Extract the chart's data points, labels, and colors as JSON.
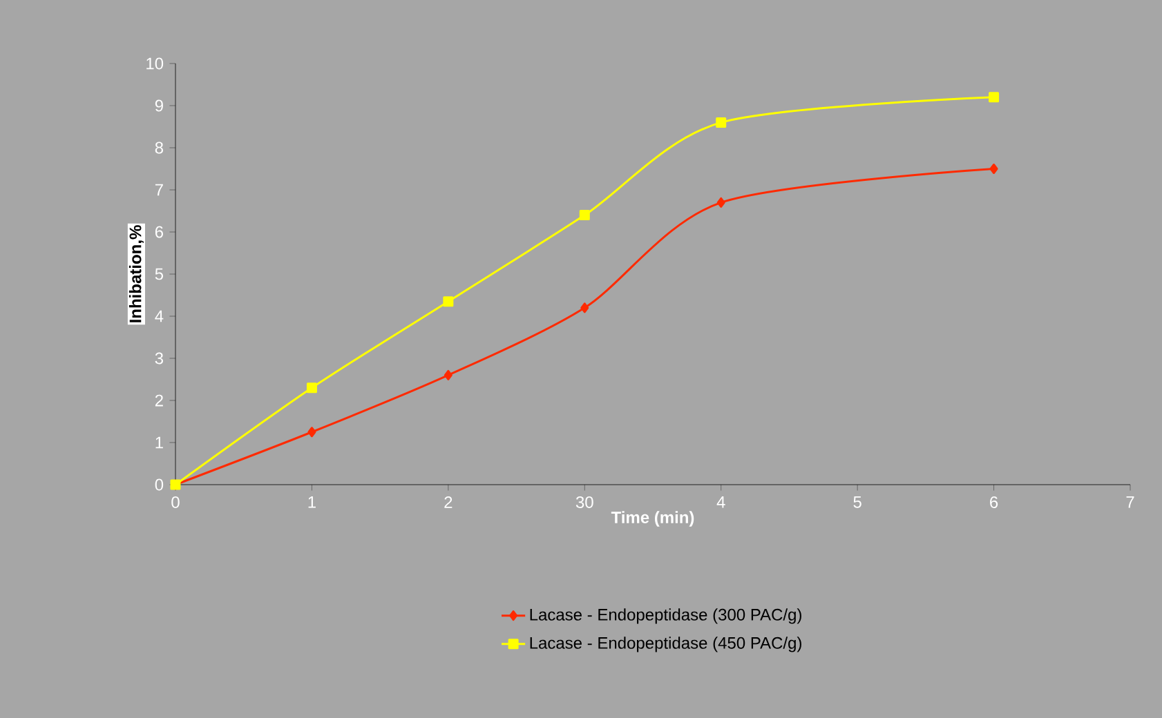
{
  "chart_data": {
    "type": "line",
    "xlabel": "Time (min)",
    "ylabel": "Inhibation,%",
    "categories": [
      "0",
      "1",
      "2",
      "30",
      "4",
      "5",
      "6",
      "7"
    ],
    "ylim": [
      0,
      10
    ],
    "yticks": [
      0,
      1,
      2,
      3,
      4,
      5,
      6,
      7,
      8,
      9,
      10
    ],
    "grid": false,
    "legend": "bottom",
    "line_style": "solid",
    "series": [
      {
        "name": "Lacase - Endopeptidase (300 PAC/g)",
        "color": "#ff2a00",
        "marker": "diamond",
        "values": [
          0,
          1.25,
          2.6,
          4.2,
          6.7,
          null,
          7.5,
          null
        ]
      },
      {
        "name": "Lacase - Endopeptidase (450 PAC/g)",
        "color": "#ffff00",
        "marker": "square",
        "values": [
          0,
          2.3,
          4.35,
          6.4,
          8.6,
          null,
          9.2,
          null
        ]
      }
    ]
  }
}
